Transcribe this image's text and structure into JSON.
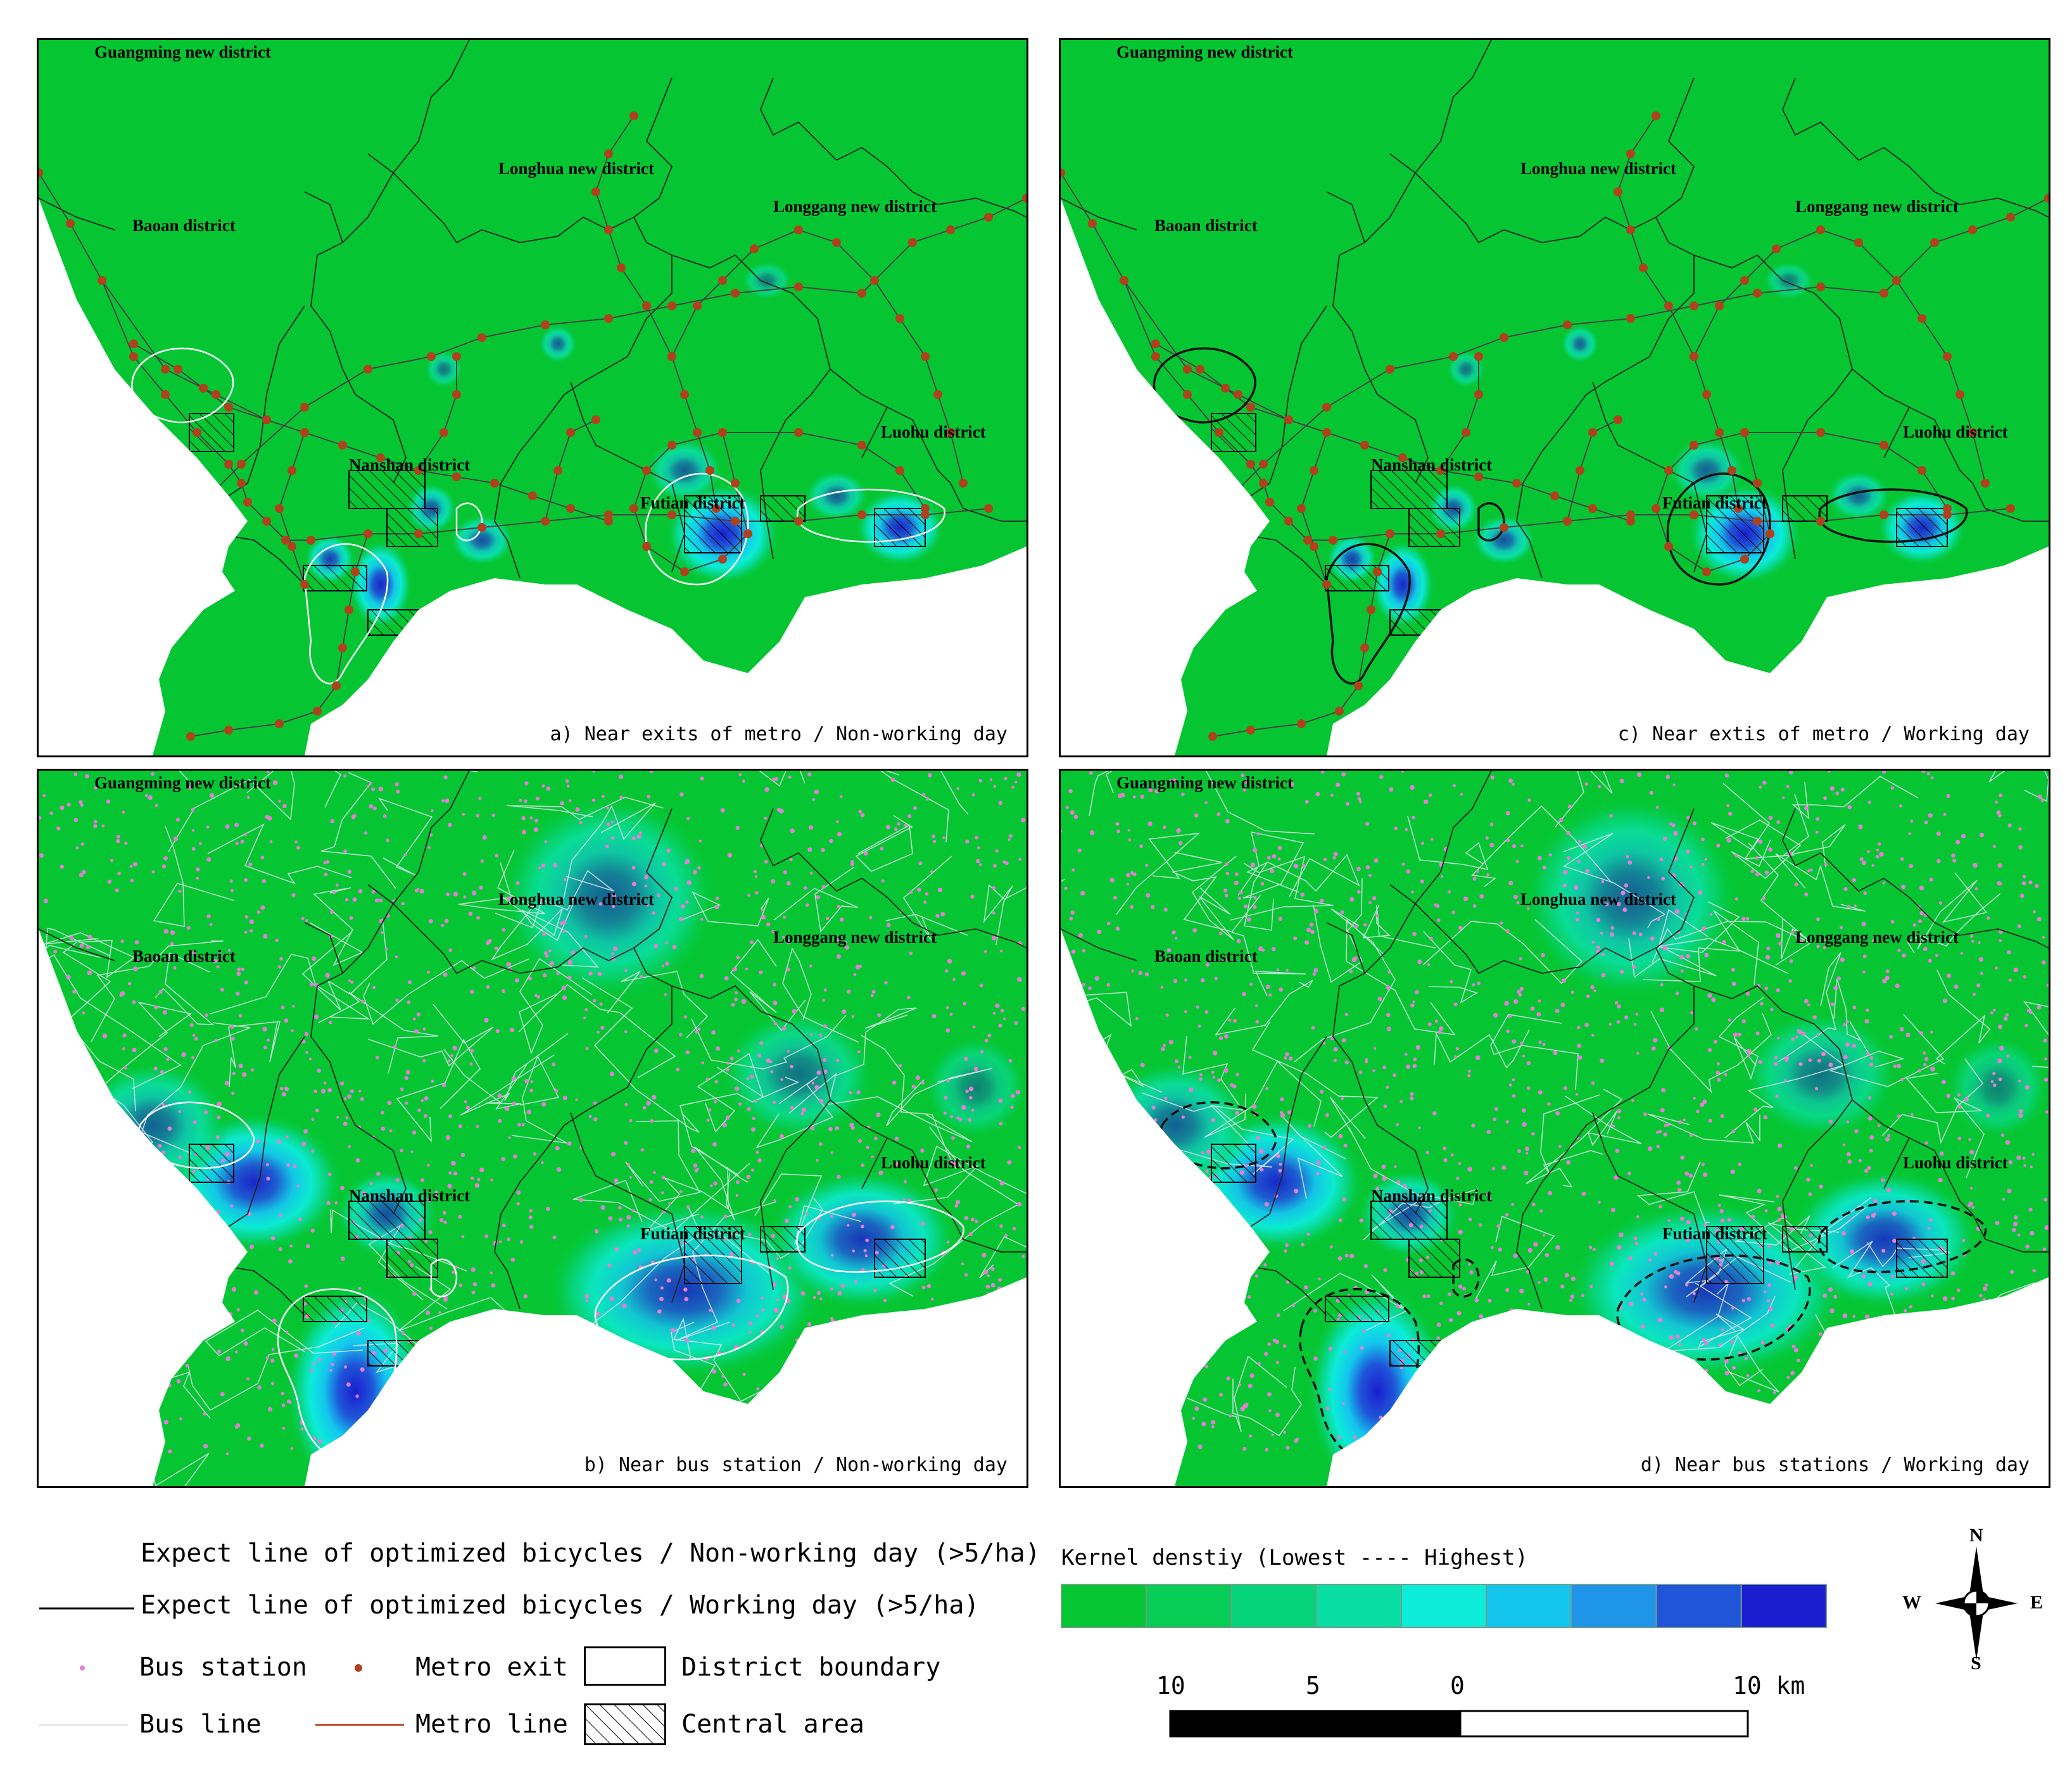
{
  "districts": {
    "guangming": "Guangming new district",
    "baoan": "Baoan district",
    "longhua": "Longhua new district",
    "longgang": "Longgang new district",
    "luohu": "Luohu district",
    "nanshan": "Nanshan district",
    "futian": "Futian district"
  },
  "panels": {
    "a": {
      "caption": "a) Near exits of metro / Non-working day",
      "layer": "metro",
      "expect_line": "white"
    },
    "b": {
      "caption": "b) Near bus station / Non-working day",
      "layer": "bus",
      "expect_line": "white"
    },
    "c": {
      "caption": "c) Near extis of metro / Working day",
      "layer": "metro",
      "expect_line": "black"
    },
    "d": {
      "caption": "d) Near bus stations / Working day",
      "layer": "bus",
      "expect_line": "black-dashed"
    }
  },
  "legend": {
    "expect_nonworking": "Expect line of optimized bicycles / Non-working day (>5/ha)",
    "expect_working": "Expect line of optimized bicycles / Working day (>5/ha)",
    "bus_station": "Bus station",
    "metro_exit": "Metro exit",
    "district_boundary": "District boundary",
    "bus_line": "Bus line",
    "metro_line": "Metro line",
    "central_area": "Central area"
  },
  "kernel": {
    "title": "Kernel denstiy (Lowest ---- Highest)",
    "colors": [
      "#05c632",
      "#05cd55",
      "#06d47a",
      "#08dea4",
      "#0cecd8",
      "#14c6ee",
      "#1f95ea",
      "#1f55d8",
      "#1a1ed0"
    ]
  },
  "scale": {
    "labels": [
      "10",
      "5",
      "0",
      "10 km"
    ]
  },
  "compass": {
    "n": "N",
    "s": "S",
    "e": "E",
    "w": "W"
  },
  "colors": {
    "metro": "#b0411d",
    "bus": "#e27fd6",
    "bg": "#05c632"
  }
}
